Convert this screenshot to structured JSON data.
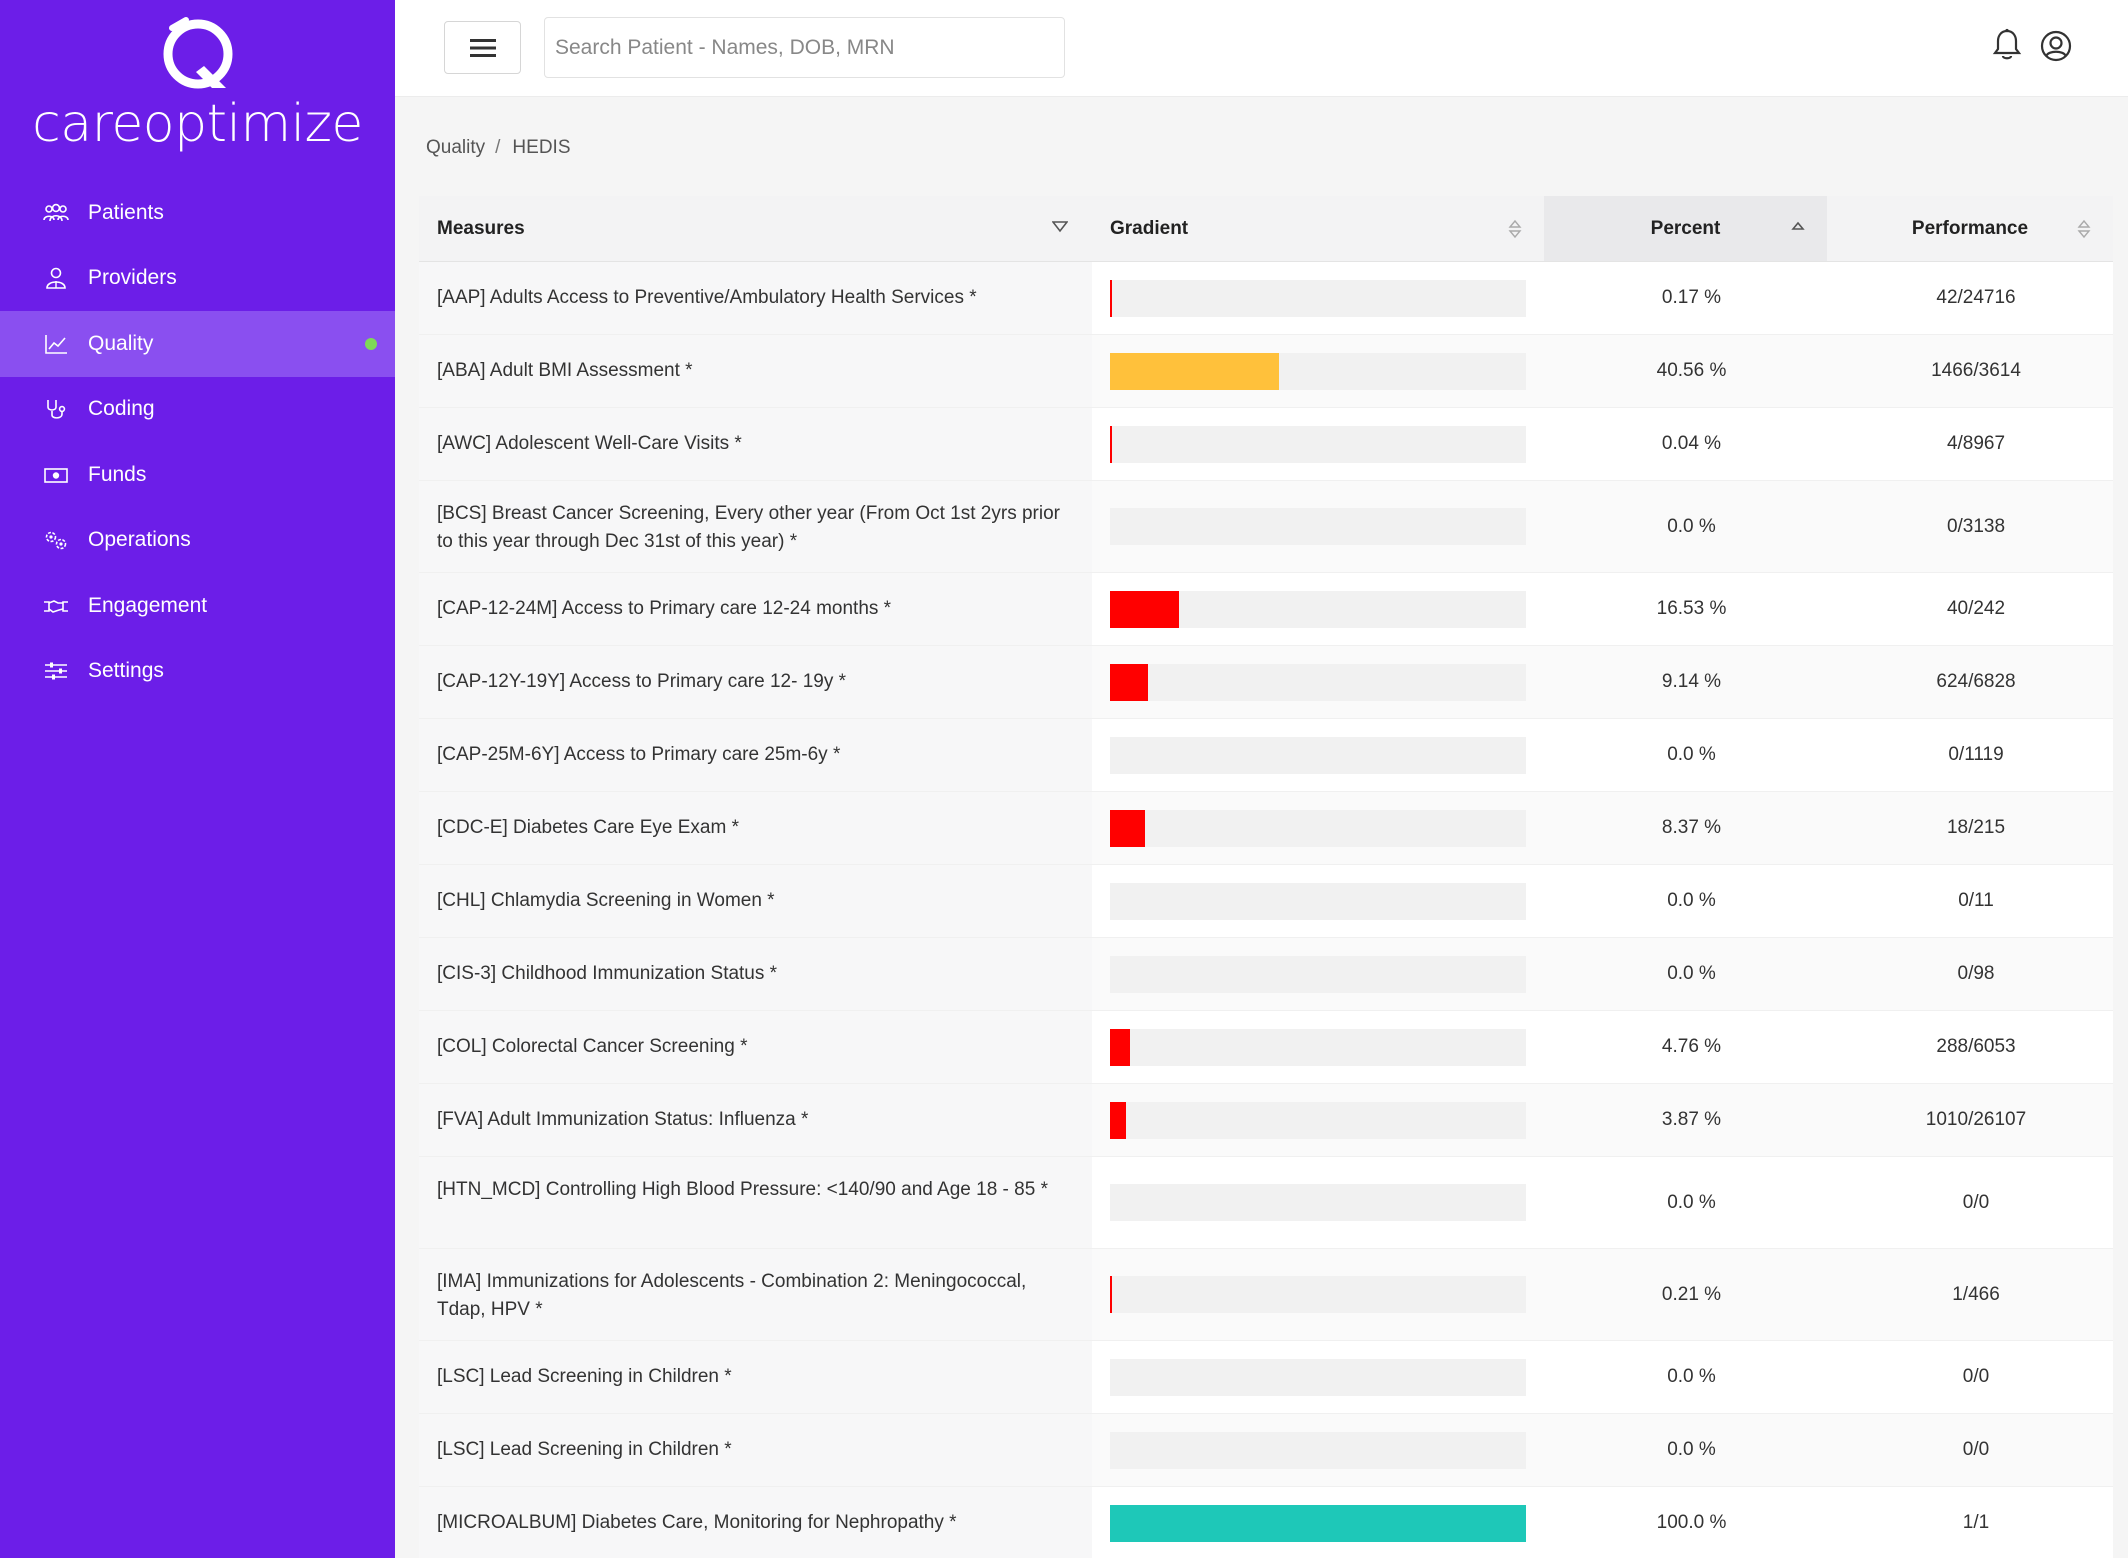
{
  "brand": {
    "name": "careoptimize"
  },
  "sidebar": {
    "items": [
      {
        "label": "Patients",
        "icon": "patients-icon"
      },
      {
        "label": "Providers",
        "icon": "providers-icon"
      },
      {
        "label": "Quality",
        "icon": "chart-icon",
        "active": true
      },
      {
        "label": "Coding",
        "icon": "stethoscope-icon"
      },
      {
        "label": "Funds",
        "icon": "money-icon"
      },
      {
        "label": "Operations",
        "icon": "gears-icon"
      },
      {
        "label": "Engagement",
        "icon": "handshake-icon"
      },
      {
        "label": "Settings",
        "icon": "sliders-icon"
      }
    ]
  },
  "header": {
    "search_placeholder": "Search Patient - Names, DOB, MRN"
  },
  "breadcrumb": {
    "parent": "Quality",
    "separator": "/",
    "current": "HEDIS"
  },
  "table": {
    "columns": [
      "Measures",
      "Gradient",
      "Percent",
      "Performance"
    ],
    "rows": [
      {
        "measure": "[AAP] Adults Access to Preventive/Ambulatory Health Services *",
        "percent_text": "0.17 %",
        "percent": 0.17,
        "performance": "42/24716",
        "color": "#ff0000"
      },
      {
        "measure": "[ABA] Adult BMI Assessment *",
        "percent_text": "40.56 %",
        "percent": 40.56,
        "performance": "1466/3614",
        "color": "#ffc13b"
      },
      {
        "measure": "[AWC] Adolescent Well-Care Visits *",
        "percent_text": "0.04 %",
        "percent": 0.04,
        "performance": "4/8967",
        "color": "#ff0000"
      },
      {
        "measure": "[BCS] Breast Cancer Screening, Every other year (From Oct 1st 2yrs prior to this year through Dec 31st of this year) *",
        "percent_text": "0.0 %",
        "percent": 0.0,
        "performance": "0/3138",
        "color": "#ff0000"
      },
      {
        "measure": "[CAP-12-24M] Access to Primary care 12-24 months *",
        "percent_text": "16.53 %",
        "percent": 16.53,
        "performance": "40/242",
        "color": "#ff0000"
      },
      {
        "measure": "[CAP-12Y-19Y] Access to Primary care 12- 19y *",
        "percent_text": "9.14 %",
        "percent": 9.14,
        "performance": "624/6828",
        "color": "#ff0000"
      },
      {
        "measure": "[CAP-25M-6Y] Access to Primary care 25m-6y *",
        "percent_text": "0.0 %",
        "percent": 0.0,
        "performance": "0/1119",
        "color": "#ff0000"
      },
      {
        "measure": "[CDC-E] Diabetes Care Eye Exam *",
        "percent_text": "8.37 %",
        "percent": 8.37,
        "performance": "18/215",
        "color": "#ff0000"
      },
      {
        "measure": "[CHL] Chlamydia Screening in Women *",
        "percent_text": "0.0 %",
        "percent": 0.0,
        "performance": "0/11",
        "color": "#ff0000"
      },
      {
        "measure": "[CIS-3] Childhood Immunization Status *",
        "percent_text": "0.0 %",
        "percent": 0.0,
        "performance": "0/98",
        "color": "#ff0000"
      },
      {
        "measure": "[COL] Colorectal Cancer Screening *",
        "percent_text": "4.76 %",
        "percent": 4.76,
        "performance": "288/6053",
        "color": "#ff0000"
      },
      {
        "measure": "[FVA] Adult Immunization Status: Influenza *",
        "percent_text": "3.87 %",
        "percent": 3.87,
        "performance": "1010/26107",
        "color": "#ff0000"
      },
      {
        "measure": "[HTN_MCD] Controlling High Blood Pressure: <140/90 and Age 18 - 85 *",
        "percent_text": "0.0 %",
        "percent": 0.0,
        "performance": "0/0",
        "color": "#ff0000"
      },
      {
        "measure": "[IMA] Immunizations for Adolescents - Combination 2: Meningococcal, Tdap, HPV *",
        "percent_text": "0.21 %",
        "percent": 0.21,
        "performance": "1/466",
        "color": "#ff0000"
      },
      {
        "measure": "[LSC] Lead Screening in Children *",
        "percent_text": "0.0 %",
        "percent": 0.0,
        "performance": "0/0",
        "color": "#ff0000"
      },
      {
        "measure": "[LSC] Lead Screening in Children *",
        "percent_text": "0.0 %",
        "percent": 0.0,
        "performance": "0/0",
        "color": "#ff0000"
      },
      {
        "measure": "[MICROALBUM] Diabetes Care, Monitoring for Nephropathy *",
        "percent_text": "100.0 %",
        "percent": 100.0,
        "performance": "1/1",
        "color": "#1ec8b8"
      }
    ]
  }
}
